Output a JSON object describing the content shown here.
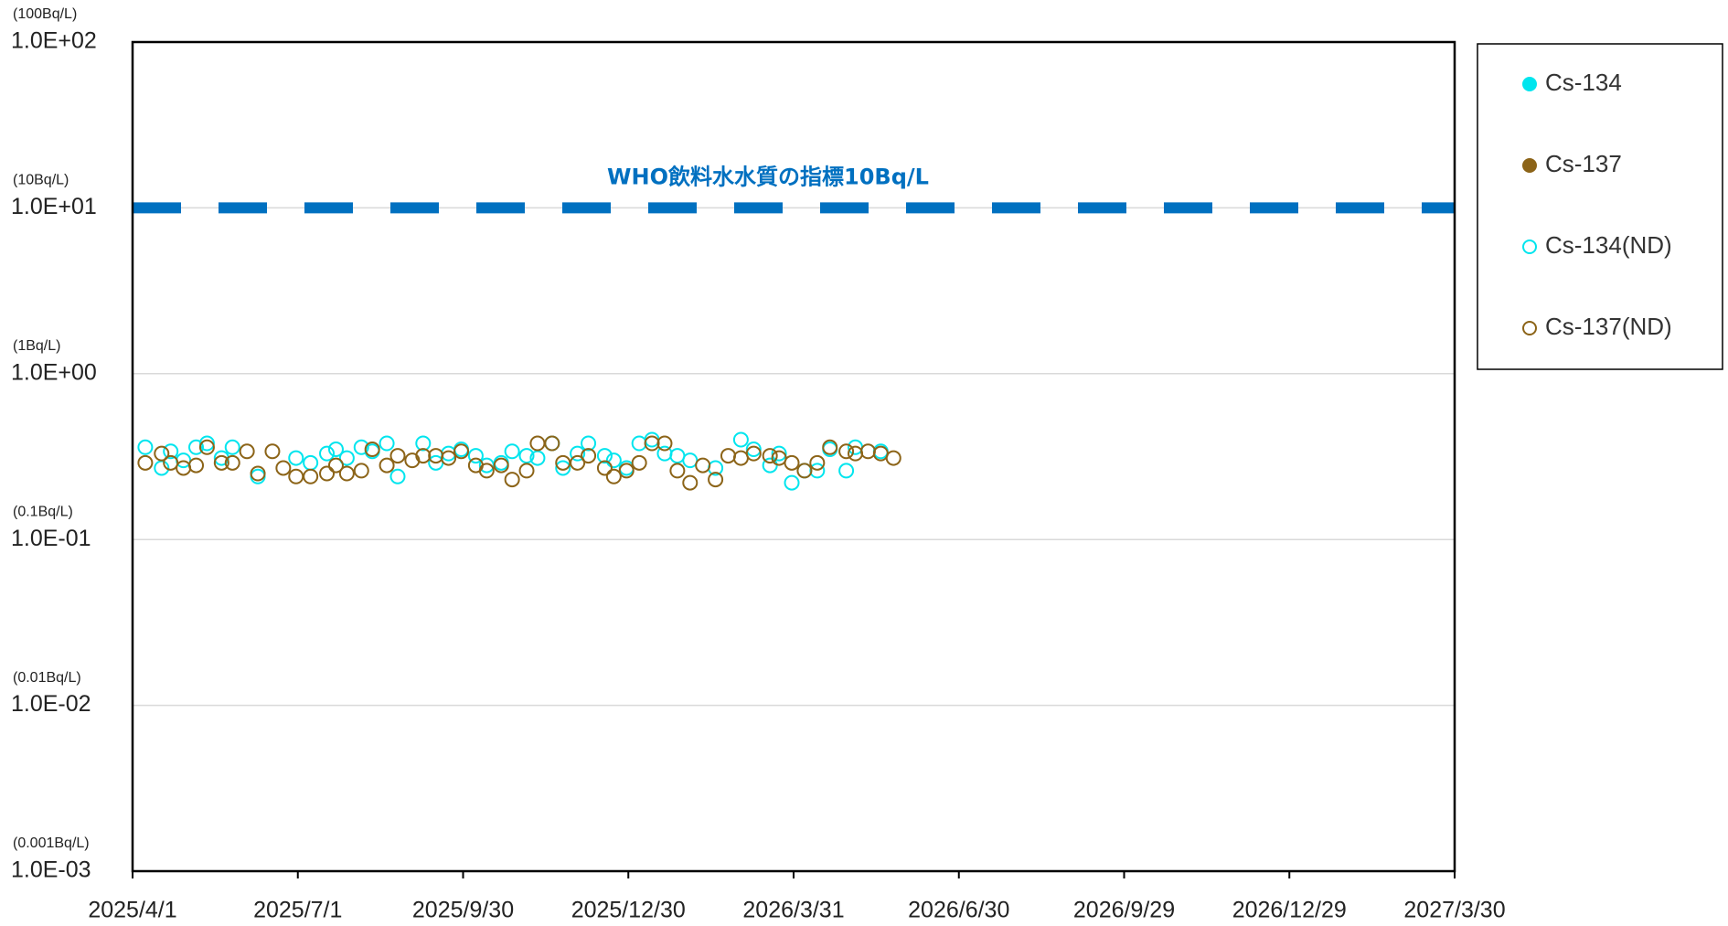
{
  "chart_data": {
    "type": "scatter",
    "yscale": "log",
    "grid": true,
    "legend_position": "right",
    "xlim": [
      "2025/4/1",
      "2027/3/30"
    ],
    "xticks": [
      "2025/4/1",
      "2025/7/1",
      "2025/9/30",
      "2025/12/30",
      "2026/3/31",
      "2026/6/30",
      "2026/9/29",
      "2026/12/29",
      "2027/3/30"
    ],
    "ylim": [
      0.001,
      100
    ],
    "yticks": [
      {
        "value": 0.001,
        "label": "1.0E-03"
      },
      {
        "value": 0.01,
        "label": "1.0E-02"
      },
      {
        "value": 0.1,
        "label": "1.0E-01"
      },
      {
        "value": 1,
        "label": "1.0E+00"
      },
      {
        "value": 10,
        "label": "1.0E+01"
      },
      {
        "value": 100,
        "label": "1.0E+02"
      }
    ],
    "ytick_units": [
      "(0.001Bq/L)",
      "(0.01Bq/L)",
      "(0.1Bq/L)",
      "(1Bq/L)",
      "(10Bq/L)",
      "(100Bq/L)"
    ],
    "reference_line": {
      "value": 10,
      "label": "WHO飲料水水質の指標10Bq/L",
      "color": "#0070c0"
    },
    "series": [
      {
        "name": "Cs-134",
        "color": "#00e5ee",
        "marker": "filled",
        "x": [],
        "values": []
      },
      {
        "name": "Cs-137",
        "color": "#8c6418",
        "marker": "filled",
        "x": [],
        "values": []
      },
      {
        "name": "Cs-134(ND)",
        "color": "#00e5ee",
        "marker": "hollow",
        "x": [
          "2025/4/8",
          "2025/4/17",
          "2025/4/22",
          "2025/4/29",
          "2025/5/6",
          "2025/5/12",
          "2025/5/20",
          "2025/5/26",
          "2025/6/9",
          "2025/6/30",
          "2025/7/8",
          "2025/7/17",
          "2025/7/22",
          "2025/7/28",
          "2025/8/5",
          "2025/8/11",
          "2025/8/19",
          "2025/8/25",
          "2025/9/8",
          "2025/9/15",
          "2025/9/22",
          "2025/9/29",
          "2025/10/7",
          "2025/10/13",
          "2025/10/21",
          "2025/10/27",
          "2025/11/4",
          "2025/11/10",
          "2025/11/18",
          "2025/11/24",
          "2025/12/2",
          "2025/12/8",
          "2025/12/17",
          "2025/12/22",
          "2025/12/29",
          "2026/1/5",
          "2026/1/12",
          "2026/1/19",
          "2026/1/26",
          "2026/2/2",
          "2026/2/16",
          "2026/3/2",
          "2026/3/9",
          "2026/3/18",
          "2026/3/23",
          "2026/3/30",
          "2026/4/6",
          "2026/4/13",
          "2026/4/20",
          "2026/4/29",
          "2026/5/4",
          "2026/5/18"
        ],
        "values": [
          0.36,
          0.27,
          0.34,
          0.3,
          0.36,
          0.38,
          0.31,
          0.36,
          0.24,
          0.31,
          0.29,
          0.33,
          0.35,
          0.31,
          0.36,
          0.34,
          0.38,
          0.24,
          0.38,
          0.29,
          0.33,
          0.35,
          0.32,
          0.28,
          0.29,
          0.34,
          0.32,
          0.31,
          0.38,
          0.27,
          0.33,
          0.38,
          0.32,
          0.3,
          0.27,
          0.38,
          0.4,
          0.33,
          0.32,
          0.3,
          0.27,
          0.4,
          0.35,
          0.28,
          0.33,
          0.22,
          0.26,
          0.26,
          0.35,
          0.26,
          0.36,
          0.34
        ]
      },
      {
        "name": "Cs-137(ND)",
        "color": "#8c6418",
        "marker": "hollow",
        "x": [
          "2025/4/8",
          "2025/4/17",
          "2025/4/22",
          "2025/4/29",
          "2025/5/6",
          "2025/5/12",
          "2025/5/20",
          "2025/5/26",
          "2025/6/3",
          "2025/6/9",
          "2025/6/17",
          "2025/6/23",
          "2025/6/30",
          "2025/7/8",
          "2025/7/17",
          "2025/7/22",
          "2025/7/28",
          "2025/8/5",
          "2025/8/11",
          "2025/8/19",
          "2025/8/25",
          "2025/9/2",
          "2025/9/8",
          "2025/9/15",
          "2025/9/22",
          "2025/9/29",
          "2025/10/7",
          "2025/10/13",
          "2025/10/21",
          "2025/10/27",
          "2025/11/4",
          "2025/11/10",
          "2025/11/18",
          "2025/11/24",
          "2025/12/2",
          "2025/12/8",
          "2025/12/17",
          "2025/12/22",
          "2025/12/29",
          "2026/1/5",
          "2026/1/12",
          "2026/1/19",
          "2026/1/26",
          "2026/2/2",
          "2026/2/9",
          "2026/2/16",
          "2026/2/23",
          "2026/3/2",
          "2026/3/9",
          "2026/3/18",
          "2026/3/23",
          "2026/3/30",
          "2026/4/6",
          "2026/4/13",
          "2026/4/20",
          "2026/4/29",
          "2026/5/4",
          "2026/5/11",
          "2026/5/18",
          "2026/5/25"
        ],
        "values": [
          0.29,
          0.33,
          0.29,
          0.27,
          0.28,
          0.36,
          0.29,
          0.29,
          0.34,
          0.25,
          0.34,
          0.27,
          0.24,
          0.24,
          0.25,
          0.28,
          0.25,
          0.26,
          0.35,
          0.28,
          0.32,
          0.3,
          0.32,
          0.32,
          0.31,
          0.34,
          0.28,
          0.26,
          0.28,
          0.23,
          0.26,
          0.38,
          0.38,
          0.29,
          0.29,
          0.32,
          0.27,
          0.24,
          0.26,
          0.29,
          0.38,
          0.38,
          0.26,
          0.22,
          0.28,
          0.23,
          0.32,
          0.31,
          0.33,
          0.32,
          0.31,
          0.29,
          0.26,
          0.29,
          0.36,
          0.34,
          0.33,
          0.34,
          0.33,
          0.31
        ]
      }
    ]
  }
}
